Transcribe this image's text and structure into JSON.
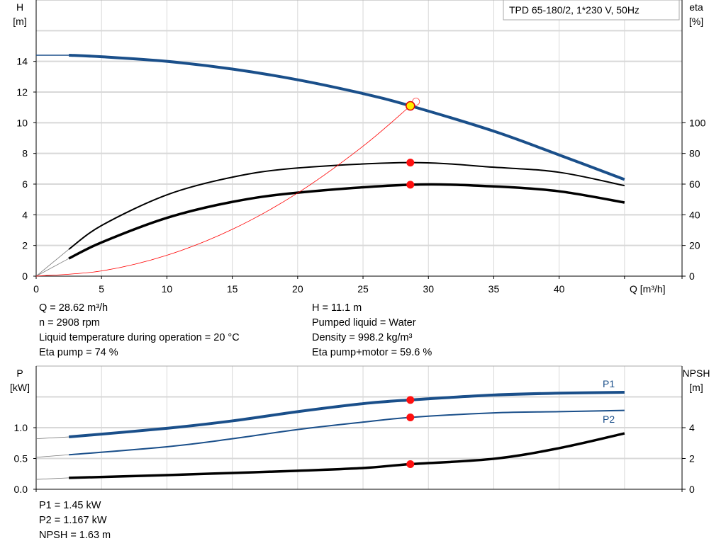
{
  "chart_data": [
    {
      "type": "line",
      "title": "TPD 65-180/2, 1*230 V, 50Hz",
      "xlabel": "Q [m³/h]",
      "ylabel": "H [m]",
      "y2label": "eta [%]",
      "ylabel_lines": [
        "H",
        "[m]"
      ],
      "y2label_lines": [
        "eta",
        "[%]"
      ],
      "xlim": [
        0,
        49.4
      ],
      "ylim": [
        0,
        18
      ],
      "y2lim": [
        0,
        180
      ],
      "grid": true,
      "xticks": [
        0,
        5,
        10,
        15,
        20,
        25,
        30,
        35,
        40
      ],
      "yticks": [
        0,
        2,
        4,
        6,
        8,
        10,
        12,
        14
      ],
      "y2ticks": [
        0,
        20,
        40,
        60,
        80,
        100
      ],
      "series": [
        {
          "id": "H",
          "axis": "left",
          "color": "#1a4f8a",
          "x": [
            2.5,
            5,
            10,
            15,
            20,
            25,
            28.62,
            35,
            40,
            45
          ],
          "y": [
            14.4,
            14.3,
            14.0,
            13.5,
            12.8,
            11.9,
            11.1,
            9.45,
            7.9,
            6.3
          ],
          "lead_in": [
            0,
            14.4
          ]
        },
        {
          "id": "eta-pump",
          "axis": "right",
          "color": "#000000",
          "x": [
            2.5,
            5,
            10,
            15,
            20,
            28.62,
            35,
            40,
            45
          ],
          "y": [
            17.5,
            33,
            53,
            64.5,
            70.5,
            74,
            71,
            67.7,
            59
          ],
          "lead_in": [
            0,
            0
          ]
        },
        {
          "id": "eta-pump-motor",
          "axis": "right",
          "color": "#000000",
          "x": [
            2.5,
            5,
            10,
            15,
            20,
            28.62,
            35,
            40,
            45
          ],
          "y": [
            11.5,
            22,
            38,
            48.4,
            54.4,
            59.6,
            58.5,
            55.3,
            48
          ],
          "lead_in": [
            0,
            0
          ]
        },
        {
          "id": "system-curve",
          "axis": "left",
          "color": "#ff0000",
          "x": [
            0,
            5,
            10,
            15,
            20,
            25,
            28.62
          ],
          "y": [
            0,
            0.34,
            1.36,
            3.05,
            5.42,
            8.47,
            11.1
          ]
        }
      ],
      "operating_point": {
        "Q": 28.62,
        "H": 11.1,
        "eta_pump": 74,
        "eta_pump_motor": 59.6
      }
    },
    {
      "type": "line",
      "xlabel": "",
      "ylabel": "P [kW]",
      "y2label": "NPSH [m]",
      "ylabel_lines": [
        "P",
        "[kW]"
      ],
      "y2label_lines": [
        "NPSH",
        "[m]"
      ],
      "xlim": [
        0,
        49.4
      ],
      "ylim": [
        0,
        2
      ],
      "y2lim": [
        0,
        8
      ],
      "grid": true,
      "yticks": [
        "0.0",
        "0.5",
        "1.0"
      ],
      "y2ticks": [
        0,
        2,
        4
      ],
      "series": [
        {
          "id": "P1",
          "name": "P1",
          "axis": "left",
          "color": "#1a4f8a",
          "x": [
            2.5,
            10,
            15,
            20,
            25,
            28.62,
            35,
            40,
            45
          ],
          "y": [
            0.85,
            0.99,
            1.11,
            1.26,
            1.39,
            1.45,
            1.53,
            1.56,
            1.575
          ],
          "lead_in": [
            0,
            0.82
          ]
        },
        {
          "id": "P2",
          "name": "P2",
          "axis": "left",
          "color": "#1a4f8a",
          "x": [
            2.5,
            10,
            15,
            20,
            25,
            28.62,
            35,
            40,
            45
          ],
          "y": [
            0.56,
            0.69,
            0.82,
            0.97,
            1.09,
            1.167,
            1.24,
            1.26,
            1.28
          ],
          "lead_in": [
            0,
            0.52
          ]
        },
        {
          "id": "NPSH",
          "axis": "right",
          "color": "#000000",
          "x": [
            2.5,
            10,
            15,
            20,
            25,
            28.62,
            35,
            40,
            45
          ],
          "y": [
            0.74,
            0.92,
            1.06,
            1.2,
            1.38,
            1.63,
            1.98,
            2.67,
            3.63
          ],
          "lead_in": [
            0,
            0.64
          ]
        }
      ]
    }
  ],
  "info": {
    "left": [
      "Q = 28.62 m³/h",
      "n = 2908 rpm",
      "Liquid temperature during operation = 20 °C",
      "Eta pump = 74 %"
    ],
    "right": [
      "H = 11.1 m",
      "Pumped liquid = Water",
      "Density = 998.2 kg/m³",
      "Eta pump+motor = 59.6 %"
    ],
    "bottom": [
      "P1 = 1.45 kW",
      "P2 = 1.167 kW",
      "NPSH = 1.63 m"
    ]
  }
}
